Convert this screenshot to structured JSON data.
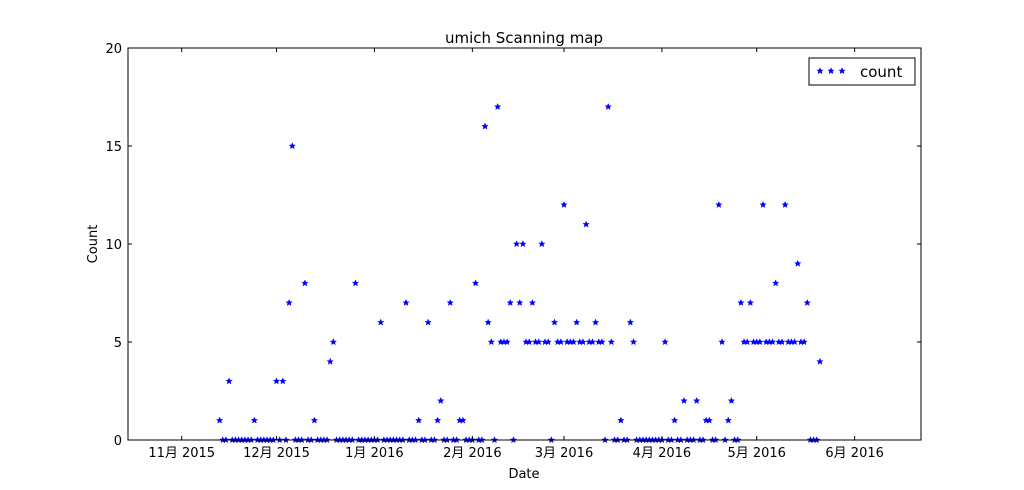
{
  "chart_data": {
    "type": "scatter",
    "title": "umich Scanning map",
    "xlabel": "Date",
    "ylabel": "Count",
    "xlim": [
      "2015-10-15",
      "2016-06-22"
    ],
    "ylim": [
      0,
      20
    ],
    "y_ticks": [
      0,
      5,
      10,
      15,
      20
    ],
    "x_ticks": [
      {
        "date": "2015-11-01",
        "label": "11月 2015"
      },
      {
        "date": "2015-12-01",
        "label": "12月 2015"
      },
      {
        "date": "2016-01-01",
        "label": "1月 2016"
      },
      {
        "date": "2016-02-01",
        "label": "2月 2016"
      },
      {
        "date": "2016-03-01",
        "label": "3月 2016"
      },
      {
        "date": "2016-04-01",
        "label": "4月 2016"
      },
      {
        "date": "2016-05-01",
        "label": "5月 2016"
      },
      {
        "date": "2016-06-01",
        "label": "6月 2016"
      }
    ],
    "grid": false,
    "legend": "top-right",
    "series": [
      {
        "name": "count",
        "color": "#0000ff",
        "marker": "star",
        "points": [
          [
            "2015-11-13",
            1
          ],
          [
            "2015-11-14",
            0
          ],
          [
            "2015-11-15",
            0
          ],
          [
            "2015-11-16",
            3
          ],
          [
            "2015-11-17",
            0
          ],
          [
            "2015-11-18",
            0
          ],
          [
            "2015-11-19",
            0
          ],
          [
            "2015-11-20",
            0
          ],
          [
            "2015-11-21",
            0
          ],
          [
            "2015-11-22",
            0
          ],
          [
            "2015-11-23",
            0
          ],
          [
            "2015-11-24",
            1
          ],
          [
            "2015-11-25",
            0
          ],
          [
            "2015-11-26",
            0
          ],
          [
            "2015-11-27",
            0
          ],
          [
            "2015-11-28",
            0
          ],
          [
            "2015-11-29",
            0
          ],
          [
            "2015-11-30",
            0
          ],
          [
            "2015-12-01",
            3
          ],
          [
            "2015-12-02",
            0
          ],
          [
            "2015-12-03",
            3
          ],
          [
            "2015-12-04",
            0
          ],
          [
            "2015-12-05",
            7
          ],
          [
            "2015-12-06",
            15
          ],
          [
            "2015-12-07",
            0
          ],
          [
            "2015-12-08",
            0
          ],
          [
            "2015-12-09",
            0
          ],
          [
            "2015-12-10",
            8
          ],
          [
            "2015-12-11",
            0
          ],
          [
            "2015-12-12",
            0
          ],
          [
            "2015-12-13",
            1
          ],
          [
            "2015-12-14",
            0
          ],
          [
            "2015-12-15",
            0
          ],
          [
            "2015-12-16",
            0
          ],
          [
            "2015-12-17",
            0
          ],
          [
            "2015-12-18",
            4
          ],
          [
            "2015-12-19",
            5
          ],
          [
            "2015-12-20",
            0
          ],
          [
            "2015-12-21",
            0
          ],
          [
            "2015-12-22",
            0
          ],
          [
            "2015-12-23",
            0
          ],
          [
            "2015-12-24",
            0
          ],
          [
            "2015-12-25",
            0
          ],
          [
            "2015-12-26",
            8
          ],
          [
            "2015-12-27",
            0
          ],
          [
            "2015-12-28",
            0
          ],
          [
            "2015-12-29",
            0
          ],
          [
            "2015-12-30",
            0
          ],
          [
            "2015-12-31",
            0
          ],
          [
            "2016-01-01",
            0
          ],
          [
            "2016-01-02",
            0
          ],
          [
            "2016-01-03",
            6
          ],
          [
            "2016-01-04",
            0
          ],
          [
            "2016-01-05",
            0
          ],
          [
            "2016-01-06",
            0
          ],
          [
            "2016-01-07",
            0
          ],
          [
            "2016-01-08",
            0
          ],
          [
            "2016-01-09",
            0
          ],
          [
            "2016-01-10",
            0
          ],
          [
            "2016-01-11",
            7
          ],
          [
            "2016-01-12",
            0
          ],
          [
            "2016-01-13",
            0
          ],
          [
            "2016-01-14",
            0
          ],
          [
            "2016-01-15",
            1
          ],
          [
            "2016-01-16",
            0
          ],
          [
            "2016-01-17",
            0
          ],
          [
            "2016-01-18",
            6
          ],
          [
            "2016-01-19",
            0
          ],
          [
            "2016-01-20",
            0
          ],
          [
            "2016-01-21",
            1
          ],
          [
            "2016-01-22",
            2
          ],
          [
            "2016-01-23",
            0
          ],
          [
            "2016-01-24",
            0
          ],
          [
            "2016-01-25",
            7
          ],
          [
            "2016-01-26",
            0
          ],
          [
            "2016-01-27",
            0
          ],
          [
            "2016-01-28",
            1
          ],
          [
            "2016-01-29",
            1
          ],
          [
            "2016-01-30",
            0
          ],
          [
            "2016-01-31",
            0
          ],
          [
            "2016-02-01",
            0
          ],
          [
            "2016-02-02",
            8
          ],
          [
            "2016-02-03",
            0
          ],
          [
            "2016-02-04",
            0
          ],
          [
            "2016-02-05",
            16
          ],
          [
            "2016-02-06",
            6
          ],
          [
            "2016-02-07",
            5
          ],
          [
            "2016-02-08",
            0
          ],
          [
            "2016-02-09",
            17
          ],
          [
            "2016-02-10",
            5
          ],
          [
            "2016-02-11",
            5
          ],
          [
            "2016-02-12",
            5
          ],
          [
            "2016-02-13",
            7
          ],
          [
            "2016-02-14",
            0
          ],
          [
            "2016-02-15",
            10
          ],
          [
            "2016-02-16",
            7
          ],
          [
            "2016-02-17",
            10
          ],
          [
            "2016-02-18",
            5
          ],
          [
            "2016-02-19",
            5
          ],
          [
            "2016-02-20",
            7
          ],
          [
            "2016-02-21",
            5
          ],
          [
            "2016-02-22",
            5
          ],
          [
            "2016-02-23",
            10
          ],
          [
            "2016-02-24",
            5
          ],
          [
            "2016-02-25",
            5
          ],
          [
            "2016-02-26",
            0
          ],
          [
            "2016-02-27",
            6
          ],
          [
            "2016-02-28",
            5
          ],
          [
            "2016-02-29",
            5
          ],
          [
            "2016-03-01",
            12
          ],
          [
            "2016-03-02",
            5
          ],
          [
            "2016-03-03",
            5
          ],
          [
            "2016-03-04",
            5
          ],
          [
            "2016-03-05",
            6
          ],
          [
            "2016-03-06",
            5
          ],
          [
            "2016-03-07",
            5
          ],
          [
            "2016-03-08",
            11
          ],
          [
            "2016-03-09",
            5
          ],
          [
            "2016-03-10",
            5
          ],
          [
            "2016-03-11",
            6
          ],
          [
            "2016-03-12",
            5
          ],
          [
            "2016-03-13",
            5
          ],
          [
            "2016-03-14",
            0
          ],
          [
            "2016-03-15",
            17
          ],
          [
            "2016-03-16",
            5
          ],
          [
            "2016-03-17",
            0
          ],
          [
            "2016-03-18",
            0
          ],
          [
            "2016-03-19",
            1
          ],
          [
            "2016-03-20",
            0
          ],
          [
            "2016-03-21",
            0
          ],
          [
            "2016-03-22",
            6
          ],
          [
            "2016-03-23",
            5
          ],
          [
            "2016-03-24",
            0
          ],
          [
            "2016-03-25",
            0
          ],
          [
            "2016-03-26",
            0
          ],
          [
            "2016-03-27",
            0
          ],
          [
            "2016-03-28",
            0
          ],
          [
            "2016-03-29",
            0
          ],
          [
            "2016-03-30",
            0
          ],
          [
            "2016-03-31",
            0
          ],
          [
            "2016-04-01",
            0
          ],
          [
            "2016-04-02",
            5
          ],
          [
            "2016-04-03",
            0
          ],
          [
            "2016-04-04",
            0
          ],
          [
            "2016-04-05",
            1
          ],
          [
            "2016-04-06",
            0
          ],
          [
            "2016-04-07",
            0
          ],
          [
            "2016-04-08",
            2
          ],
          [
            "2016-04-09",
            0
          ],
          [
            "2016-04-10",
            0
          ],
          [
            "2016-04-11",
            0
          ],
          [
            "2016-04-12",
            2
          ],
          [
            "2016-04-13",
            0
          ],
          [
            "2016-04-14",
            0
          ],
          [
            "2016-04-15",
            1
          ],
          [
            "2016-04-16",
            1
          ],
          [
            "2016-04-17",
            0
          ],
          [
            "2016-04-18",
            0
          ],
          [
            "2016-04-19",
            12
          ],
          [
            "2016-04-20",
            5
          ],
          [
            "2016-04-21",
            0
          ],
          [
            "2016-04-22",
            1
          ],
          [
            "2016-04-23",
            2
          ],
          [
            "2016-04-24",
            0
          ],
          [
            "2016-04-25",
            0
          ],
          [
            "2016-04-26",
            7
          ],
          [
            "2016-04-27",
            5
          ],
          [
            "2016-04-28",
            5
          ],
          [
            "2016-04-29",
            7
          ],
          [
            "2016-04-30",
            5
          ],
          [
            "2016-05-01",
            5
          ],
          [
            "2016-05-02",
            5
          ],
          [
            "2016-05-03",
            12
          ],
          [
            "2016-05-04",
            5
          ],
          [
            "2016-05-05",
            5
          ],
          [
            "2016-05-06",
            5
          ],
          [
            "2016-05-07",
            8
          ],
          [
            "2016-05-08",
            5
          ],
          [
            "2016-05-09",
            5
          ],
          [
            "2016-05-10",
            12
          ],
          [
            "2016-05-11",
            5
          ],
          [
            "2016-05-12",
            5
          ],
          [
            "2016-05-13",
            5
          ],
          [
            "2016-05-14",
            9
          ],
          [
            "2016-05-15",
            5
          ],
          [
            "2016-05-16",
            5
          ],
          [
            "2016-05-17",
            7
          ],
          [
            "2016-05-18",
            0
          ],
          [
            "2016-05-19",
            0
          ],
          [
            "2016-05-20",
            0
          ],
          [
            "2016-05-21",
            4
          ]
        ]
      }
    ]
  }
}
